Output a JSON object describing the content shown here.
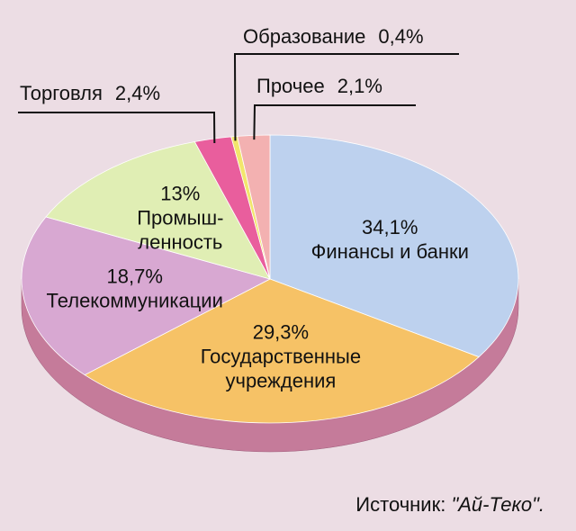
{
  "chart_data": {
    "type": "pie",
    "categories": [
      [
        "Финансы и банки"
      ],
      [
        "Государственные",
        "учреждения"
      ],
      [
        "Телекоммуникации"
      ],
      [
        "Промыш-",
        "ленность"
      ],
      [
        "Торговля"
      ],
      [
        "Образование"
      ],
      [
        "Прочее"
      ]
    ],
    "values": [
      34.1,
      29.3,
      18.7,
      13,
      2.4,
      0.4,
      2.1
    ],
    "value_labels": [
      "34,1%",
      "29,3%",
      "18,7%",
      "13%",
      "2,4%",
      "0,4%",
      "2,1%"
    ],
    "colors": [
      "#bdd1ee",
      "#f6c266",
      "#d8a8d2",
      "#e0eeb4",
      "#e95e9d",
      "#f2e66c",
      "#f3b1b1"
    ],
    "side_color": "#c57b9a",
    "source": "Источник:",
    "source_name": "\"Ай-Теко\"."
  }
}
